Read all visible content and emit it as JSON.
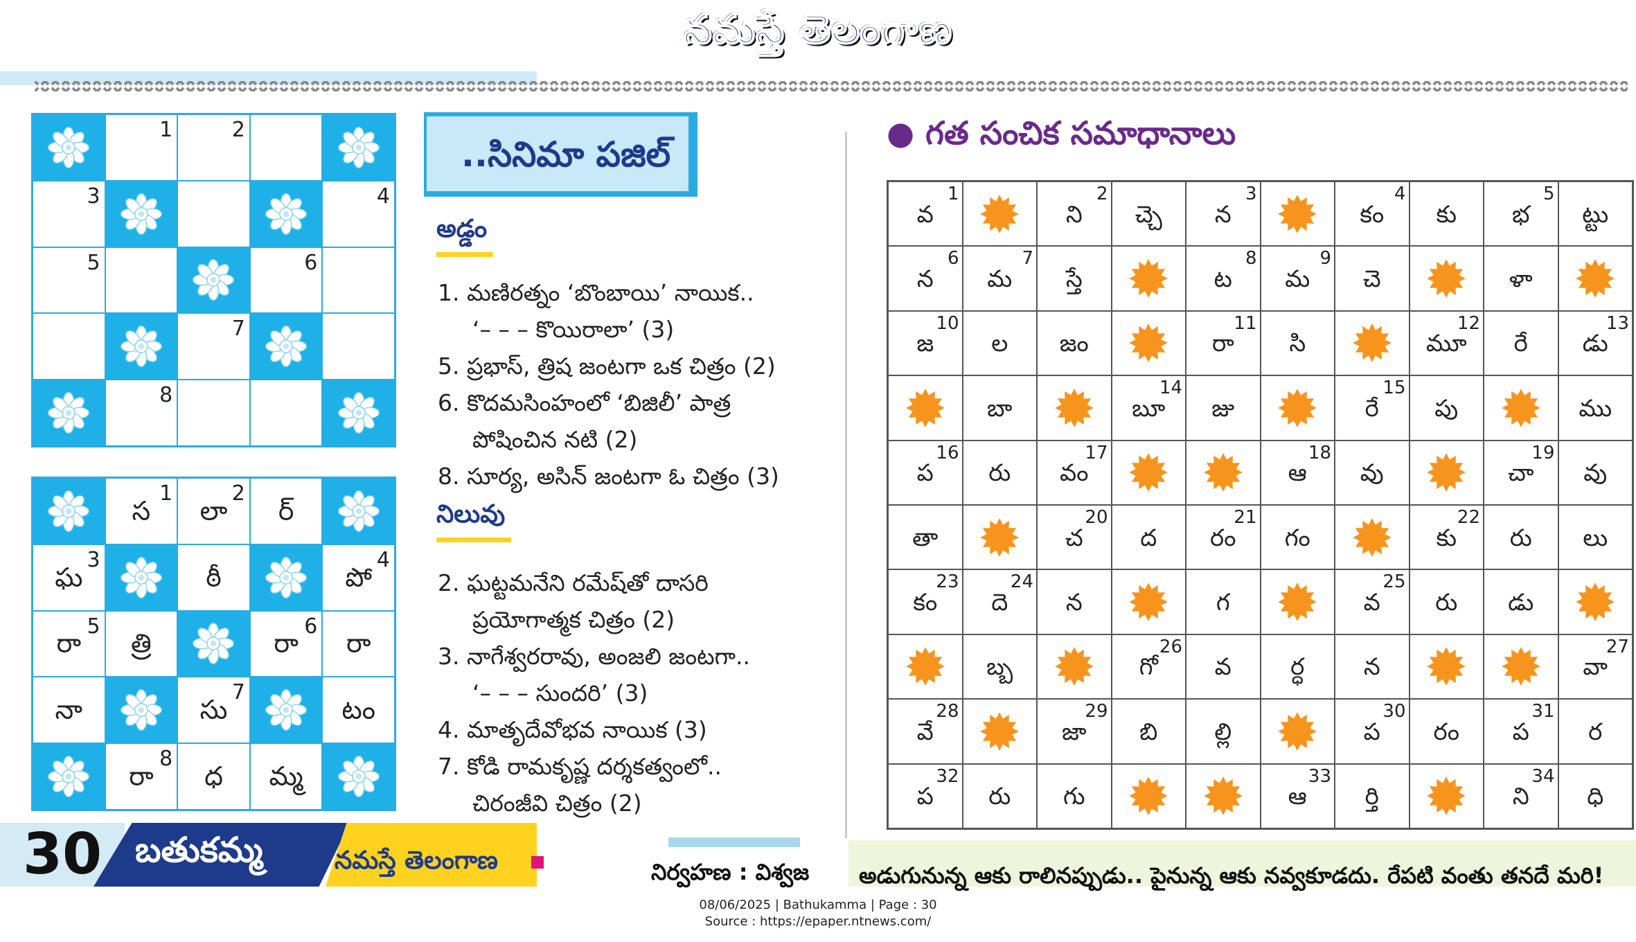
{
  "masthead": {
    "title": "నమస్తే తెలంగాణ"
  },
  "puzzle": {
    "title": "..సినిమా పజిల్",
    "blank_grid": [
      [
        {
          "block": true
        },
        {
          "num": "1"
        },
        {
          "num": "2"
        },
        {},
        {
          "block": true
        }
      ],
      [
        {
          "num": "3"
        },
        {
          "block": true
        },
        {},
        {
          "block": true
        },
        {
          "num": "4"
        }
      ],
      [
        {
          "num": "5"
        },
        {},
        {
          "block": true
        },
        {
          "num": "6"
        },
        {}
      ],
      [
        {},
        {
          "block": true
        },
        {
          "num": "7"
        },
        {
          "block": true
        },
        {}
      ],
      [
        {
          "block": true
        },
        {
          "num": "8"
        },
        {},
        {},
        {
          "block": true
        }
      ]
    ],
    "solved_grid": [
      [
        {
          "block": true
        },
        {
          "num": "1",
          "ch": "స"
        },
        {
          "num": "2",
          "ch": "లా"
        },
        {
          "ch": "ర్"
        },
        {
          "block": true
        }
      ],
      [
        {
          "num": "3",
          "ch": "ఘ"
        },
        {
          "block": true
        },
        {
          "ch": "ఠీ"
        },
        {
          "block": true
        },
        {
          "num": "4",
          "ch": "పో"
        }
      ],
      [
        {
          "num": "5",
          "ch": "రా"
        },
        {
          "ch": "త్రి"
        },
        {
          "block": true
        },
        {
          "num": "6",
          "ch": "రా"
        },
        {
          "ch": "రా"
        }
      ],
      [
        {
          "ch": "నా"
        },
        {
          "block": true
        },
        {
          "num": "7",
          "ch": "సు"
        },
        {
          "block": true
        },
        {
          "ch": "టం"
        }
      ],
      [
        {
          "block": true
        },
        {
          "num": "8",
          "ch": "రా"
        },
        {
          "ch": "ధ"
        },
        {
          "ch": "మ్మ"
        },
        {
          "block": true
        }
      ]
    ],
    "across_heading": "అడ్డం",
    "across": [
      "1. మణిరత్నం ‘బొంబాయి’ నాయిక..",
      "‘– – – కొయిరాలా’ (3)",
      "5. ప్రభాస్, త్రిష జంటగా ఒక చిత్రం (2)",
      "6. కొదమసింహంలో ‘బిజిలీ’ పాత్ర",
      "పోషించిన నటి (2)",
      "8. సూర్య, అసిన్ జంటగా ఓ చిత్రం (3)"
    ],
    "down_heading": "నిలువు",
    "down": [
      "2. ఘట్టమనేని రమేష్‌తో దాసరి",
      "ప్రయోగాత్మక చిత్రం (2)",
      "3. నాగేశ్వరరావు, అంజలి జంటగా..",
      "‘– – – సుందరి’ (3)",
      "4. మాతృదేవోభవ నాయిక (3)",
      "7. కోడి రామకృష్ణ దర్శకత్వంలో..",
      "చిరంజీవి చిత్రం (2)"
    ]
  },
  "answers": {
    "title": "● గత సంచిక సమాధానాలు",
    "grid": [
      [
        {
          "ch": "వ",
          "num": "1"
        },
        {
          "block": true
        },
        {
          "ch": "ని",
          "num": "2"
        },
        {
          "ch": "చ్చె"
        },
        {
          "ch": "న",
          "num": "3"
        },
        {
          "block": true
        },
        {
          "ch": "కం",
          "num": "4"
        },
        {
          "ch": "కు"
        },
        {
          "ch": "భ",
          "num": "5"
        },
        {
          "ch": "ట్టు"
        }
      ],
      [
        {
          "ch": "న",
          "num": "6"
        },
        {
          "ch": "మ",
          "num": "7"
        },
        {
          "ch": "స్తే"
        },
        {
          "block": true
        },
        {
          "ch": "ట",
          "num": "8"
        },
        {
          "ch": "మ",
          "num": "9"
        },
        {
          "ch": "చె"
        },
        {
          "block": true
        },
        {
          "ch": "ళా"
        },
        {
          "block": true
        }
      ],
      [
        {
          "ch": "జ",
          "num": "10"
        },
        {
          "ch": "ల"
        },
        {
          "ch": "జం"
        },
        {
          "block": true
        },
        {
          "ch": "రా",
          "num": "11"
        },
        {
          "ch": "సి"
        },
        {
          "block": true
        },
        {
          "ch": "మూ",
          "num": "12"
        },
        {
          "ch": "రే"
        },
        {
          "ch": "డు",
          "num": "13"
        }
      ],
      [
        {
          "block": true
        },
        {
          "ch": "బా"
        },
        {
          "block": true
        },
        {
          "ch": "బూ",
          "num": "14"
        },
        {
          "ch": "జు"
        },
        {
          "block": true
        },
        {
          "ch": "రే",
          "num": "15"
        },
        {
          "ch": "పు"
        },
        {
          "block": true
        },
        {
          "ch": "ము"
        }
      ],
      [
        {
          "ch": "ప",
          "num": "16"
        },
        {
          "ch": "రు"
        },
        {
          "ch": "వం",
          "num": "17"
        },
        {
          "block": true
        },
        {
          "block": true
        },
        {
          "ch": "ఆ",
          "num": "18"
        },
        {
          "ch": "వు"
        },
        {
          "block": true
        },
        {
          "ch": "చా",
          "num": "19"
        },
        {
          "ch": "వు"
        }
      ],
      [
        {
          "ch": "తా"
        },
        {
          "block": true
        },
        {
          "ch": "చ",
          "num": "20"
        },
        {
          "ch": "ద"
        },
        {
          "ch": "రం",
          "num": "21"
        },
        {
          "ch": "గం"
        },
        {
          "block": true
        },
        {
          "ch": "కు",
          "num": "22"
        },
        {
          "ch": "రు"
        },
        {
          "ch": "లు"
        }
      ],
      [
        {
          "ch": "కం",
          "num": "23"
        },
        {
          "ch": "దె",
          "num": "24"
        },
        {
          "ch": "న"
        },
        {
          "block": true
        },
        {
          "ch": "గ"
        },
        {
          "block": true
        },
        {
          "ch": "వ",
          "num": "25"
        },
        {
          "ch": "రు"
        },
        {
          "ch": "డు"
        },
        {
          "block": true
        }
      ],
      [
        {
          "block": true
        },
        {
          "ch": "బ్బ"
        },
        {
          "block": true
        },
        {
          "ch": "గో",
          "num": "26"
        },
        {
          "ch": "వ"
        },
        {
          "ch": "ర్ధ"
        },
        {
          "ch": "న"
        },
        {
          "block": true
        },
        {
          "block": true
        },
        {
          "ch": "వా",
          "num": "27"
        }
      ],
      [
        {
          "ch": "వే",
          "num": "28"
        },
        {
          "block": true
        },
        {
          "ch": "జా",
          "num": "29"
        },
        {
          "ch": "బి"
        },
        {
          "ch": "ల్లి"
        },
        {
          "block": true
        },
        {
          "ch": "ప",
          "num": "30"
        },
        {
          "ch": "రం"
        },
        {
          "ch": "ప",
          "num": "31"
        },
        {
          "ch": "ర"
        }
      ],
      [
        {
          "ch": "ప",
          "num": "32"
        },
        {
          "ch": "రు"
        },
        {
          "ch": "గు"
        },
        {
          "block": true
        },
        {
          "block": true
        },
        {
          "ch": "ఆ",
          "num": "33"
        },
        {
          "ch": "ర్తి"
        },
        {
          "block": true
        },
        {
          "ch": "ని",
          "num": "34"
        },
        {
          "ch": "ధి"
        }
      ]
    ]
  },
  "footer": {
    "page_number": "30",
    "section": "బతుకమ్మ",
    "paper": "నమస్తే తెలంగాణ",
    "editor": "నిర్వహణ : విశ్వజ",
    "quote": "అడుగునున్న ఆకు రాలినప్పుడు.. పైనున్న ఆకు నవ్వకూడదు. రేపటి వంతు తనదే మరి!"
  },
  "caption": {
    "line1": "08/06/2025 | Bathukamma | Page : 30",
    "line2": "Source : https://epaper.ntnews.com/"
  },
  "colors": {
    "grid_blue": "#29abe2",
    "block_blue": "#1fb0e8",
    "star_orange": "#f7941d",
    "title_purple": "#6a2a8a",
    "navy": "#1e3a8a",
    "yellow": "#ffd21f"
  }
}
